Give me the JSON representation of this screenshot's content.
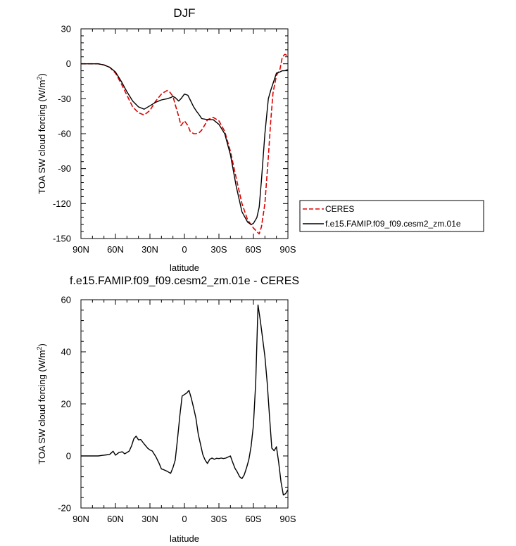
{
  "chart_data": [
    {
      "type": "line",
      "title": "DJF",
      "xlabel": "latitude",
      "ylabel": "TOA SW cloud forcing (W/m",
      "ylabel_sup": "2",
      "ylabel_close": ")",
      "xlim": [
        90,
        -90
      ],
      "ylim": [
        -150,
        30
      ],
      "xticks": [
        {
          "value": 90,
          "label": "90N"
        },
        {
          "value": 60,
          "label": "60N"
        },
        {
          "value": 30,
          "label": "30N"
        },
        {
          "value": 0,
          "label": "0"
        },
        {
          "value": -30,
          "label": "30S"
        },
        {
          "value": -60,
          "label": "60S"
        },
        {
          "value": -90,
          "label": "90S"
        }
      ],
      "yticks": [
        {
          "value": 30,
          "label": "30"
        },
        {
          "value": 0,
          "label": "0"
        },
        {
          "value": -30,
          "label": "-30"
        },
        {
          "value": -60,
          "label": "-60"
        },
        {
          "value": -90,
          "label": "-90"
        },
        {
          "value": -120,
          "label": "-120"
        },
        {
          "value": -150,
          "label": "-150"
        }
      ],
      "legend_position": "outside-right",
      "series": [
        {
          "name": "CERES",
          "color": "#e00000",
          "dash": "dashed",
          "x": [
            90,
            80,
            75,
            70,
            65,
            60,
            55,
            50,
            45,
            40,
            35,
            30,
            25,
            20,
            17,
            15,
            13,
            10,
            8,
            5,
            3,
            0,
            -3,
            -5,
            -8,
            -10,
            -13,
            -15,
            -18,
            -20,
            -25,
            -30,
            -35,
            -40,
            -45,
            -50,
            -55,
            -60,
            -63,
            -65,
            -67,
            -70,
            -73,
            -75,
            -77,
            -80,
            -83,
            -85,
            -87,
            -88,
            -90
          ],
          "y": [
            0,
            0,
            0,
            -1,
            -3,
            -8,
            -17,
            -27,
            -37,
            -42,
            -44,
            -40,
            -32,
            -26,
            -24,
            -23,
            -24,
            -28,
            -35,
            -45,
            -53,
            -49,
            -53,
            -58,
            -60,
            -60,
            -59,
            -57,
            -52,
            -48,
            -46,
            -49,
            -58,
            -75,
            -98,
            -120,
            -134,
            -141,
            -144,
            -146,
            -140,
            -120,
            -80,
            -50,
            -25,
            -10,
            -5,
            5,
            8,
            8,
            6
          ]
        },
        {
          "name": "f.e15.FAMIP.f09_f09.cesm2_zm.01e",
          "color": "#000000",
          "dash": "solid",
          "x": [
            90,
            80,
            75,
            70,
            65,
            60,
            55,
            50,
            45,
            40,
            35,
            30,
            25,
            20,
            15,
            12,
            10,
            8,
            5,
            3,
            0,
            -3,
            -5,
            -8,
            -10,
            -13,
            -15,
            -20,
            -25,
            -30,
            -35,
            -40,
            -45,
            -50,
            -55,
            -58,
            -60,
            -63,
            -65,
            -67,
            -70,
            -73,
            -75,
            -80,
            -83,
            -85,
            -87,
            -90
          ],
          "y": [
            0,
            0,
            0,
            -1,
            -3,
            -7,
            -15,
            -24,
            -32,
            -37,
            -39,
            -36,
            -33,
            -31,
            -30,
            -29,
            -28,
            -29,
            -32,
            -30,
            -26,
            -27,
            -31,
            -37,
            -40,
            -44,
            -47,
            -48,
            -48,
            -52,
            -60,
            -78,
            -105,
            -127,
            -136,
            -138,
            -137,
            -132,
            -123,
            -100,
            -60,
            -30,
            -23,
            -8,
            -7,
            -6,
            -6,
            -5
          ]
        }
      ]
    },
    {
      "type": "line",
      "title": "f.e15.FAMIP.f09_f09.cesm2_zm.01e - CERES",
      "xlabel": "latitude",
      "ylabel": "TOA SW cloud forcing (W/m",
      "ylabel_sup": "2",
      "ylabel_close": ")",
      "xlim": [
        90,
        -90
      ],
      "ylim": [
        -20,
        60
      ],
      "xticks": [
        {
          "value": 90,
          "label": "90N"
        },
        {
          "value": 60,
          "label": "60N"
        },
        {
          "value": 30,
          "label": "30N"
        },
        {
          "value": 0,
          "label": "0"
        },
        {
          "value": -30,
          "label": "30S"
        },
        {
          "value": -60,
          "label": "60S"
        },
        {
          "value": -90,
          "label": "90S"
        }
      ],
      "yticks": [
        {
          "value": 60,
          "label": "60"
        },
        {
          "value": 40,
          "label": "40"
        },
        {
          "value": 20,
          "label": "20"
        },
        {
          "value": 0,
          "label": "0"
        },
        {
          "value": -20,
          "label": "-20"
        }
      ],
      "series": [
        {
          "name": "",
          "color": "#000000",
          "dash": "solid",
          "x": [
            90,
            80,
            75,
            72,
            70,
            68,
            65,
            62,
            60,
            57,
            54,
            52,
            50,
            48,
            46,
            44,
            42,
            40,
            38,
            35,
            32,
            30,
            28,
            25,
            22,
            20,
            18,
            15,
            12,
            10,
            8,
            6,
            4,
            2,
            0,
            -2,
            -4,
            -6,
            -8,
            -10,
            -12,
            -14,
            -16,
            -18,
            -20,
            -22,
            -24,
            -26,
            -28,
            -30,
            -32,
            -34,
            -36,
            -38,
            -40,
            -42,
            -44,
            -46,
            -48,
            -50,
            -52,
            -54,
            -56,
            -58,
            -60,
            -62,
            -64,
            -66,
            -68,
            -70,
            -72,
            -74,
            -76,
            -78,
            -80,
            -82,
            -84,
            -86,
            -88,
            -90
          ],
          "y": [
            0,
            0,
            0,
            0.2,
            0.3,
            0.4,
            0.6,
            1.8,
            0.3,
            1.3,
            1.6,
            0.8,
            1.3,
            1.9,
            3.9,
            6.6,
            7.6,
            6.2,
            6.3,
            4.6,
            3.0,
            2.3,
            1.9,
            -0.2,
            -2.9,
            -5.0,
            -5.3,
            -5.9,
            -6.7,
            -4.5,
            -1.6,
            6.6,
            15.5,
            23.0,
            23.6,
            24.2,
            25.2,
            22.1,
            18.4,
            14.5,
            8.4,
            4.4,
            0.5,
            -1.6,
            -2.9,
            -1.3,
            -0.8,
            -1.3,
            -0.9,
            -1.0,
            -0.8,
            -1.0,
            -0.8,
            -0.4,
            0.0,
            -2.5,
            -4.8,
            -6.2,
            -8.0,
            -8.7,
            -7.3,
            -4.6,
            -1.4,
            3.7,
            11.8,
            28.5,
            58.0,
            52.0,
            45.0,
            38.2,
            28.0,
            15.0,
            3.0,
            2.0,
            3.5,
            -2.5,
            -10.0,
            -15.0,
            -14.5,
            -13.0
          ]
        }
      ]
    }
  ]
}
